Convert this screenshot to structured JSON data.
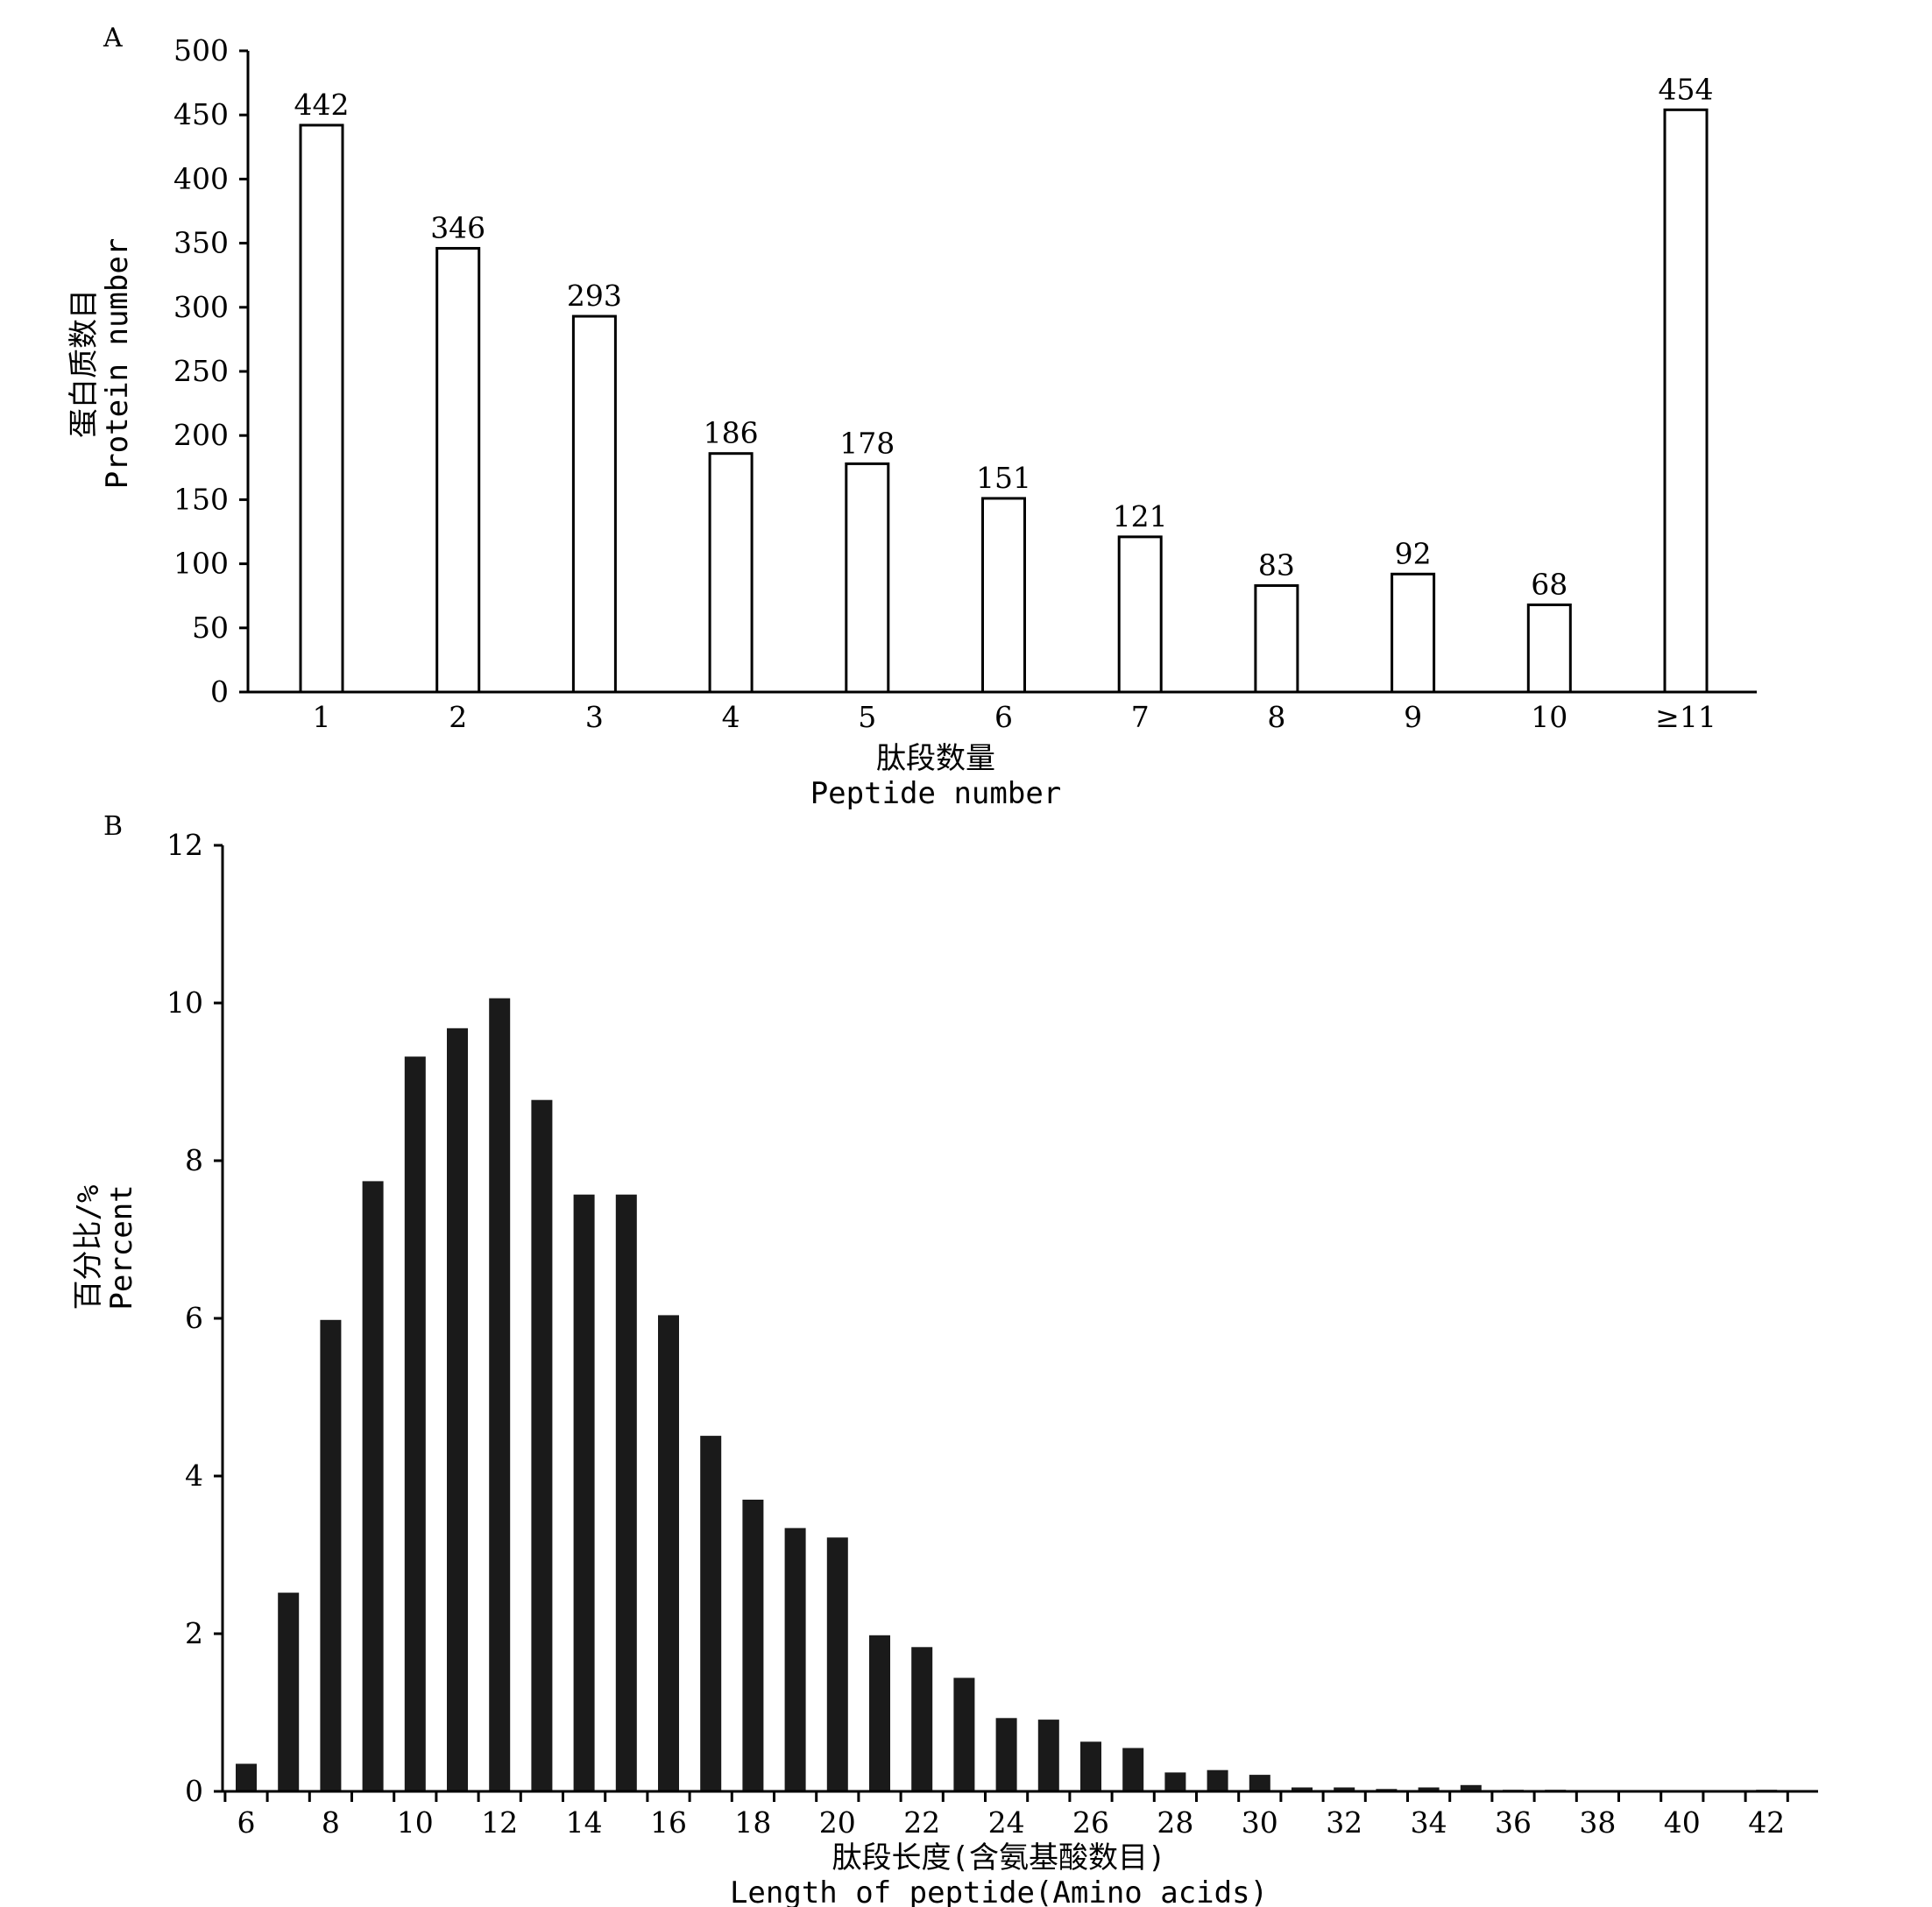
{
  "chart_data": [
    {
      "panel": "A",
      "type": "bar",
      "categories": [
        "1",
        "2",
        "3",
        "4",
        "5",
        "6",
        "7",
        "8",
        "9",
        "10",
        "≥11"
      ],
      "values": [
        442,
        346,
        293,
        186,
        178,
        151,
        121,
        83,
        92,
        68,
        454
      ],
      "data_labels": [
        "442",
        "346",
        "293",
        "186",
        "178",
        "151",
        "121",
        "83",
        "92",
        "68",
        "454"
      ],
      "xlabel_cn": "肽段数量",
      "xlabel_en": "Peptide number",
      "ylabel_cn": "蛋白质数目",
      "ylabel_en": "Protein number",
      "ylim": [
        0,
        500
      ],
      "yticks": [
        0,
        50,
        100,
        150,
        200,
        250,
        300,
        350,
        400,
        450,
        500
      ],
      "bar_fill": "#ffffff",
      "bar_stroke": "#000000",
      "grid": false
    },
    {
      "panel": "B",
      "type": "bar",
      "x": [
        6,
        7,
        8,
        9,
        10,
        11,
        12,
        13,
        14,
        15,
        16,
        17,
        18,
        19,
        20,
        21,
        22,
        23,
        24,
        25,
        26,
        27,
        28,
        29,
        30,
        31,
        32,
        33,
        34,
        35,
        36,
        37,
        38,
        39,
        40,
        41,
        42
      ],
      "values": [
        0.35,
        2.52,
        5.98,
        7.74,
        9.32,
        9.68,
        10.06,
        8.77,
        7.57,
        7.57,
        6.04,
        4.51,
        3.7,
        3.34,
        3.22,
        1.98,
        1.83,
        1.44,
        0.93,
        0.91,
        0.63,
        0.55,
        0.24,
        0.27,
        0.21,
        0.05,
        0.05,
        0.03,
        0.05,
        0.08,
        0.02,
        0.02,
        0.01,
        0.0,
        0.01,
        0.0,
        0.02
      ],
      "xticks": [
        6,
        8,
        10,
        12,
        14,
        16,
        18,
        20,
        22,
        24,
        26,
        28,
        30,
        32,
        34,
        36,
        38,
        40,
        42
      ],
      "xlabel_cn": "肽段长度(含氨基酸数目)",
      "xlabel_en": "Length of peptide(Amino acids)",
      "ylabel_cn": "百分比/%",
      "ylabel_en": "Percent",
      "ylim": [
        0,
        12
      ],
      "yticks": [
        0,
        2,
        4,
        6,
        8,
        10,
        12
      ],
      "bar_fill": "#1a1a1a",
      "grid": false
    }
  ]
}
